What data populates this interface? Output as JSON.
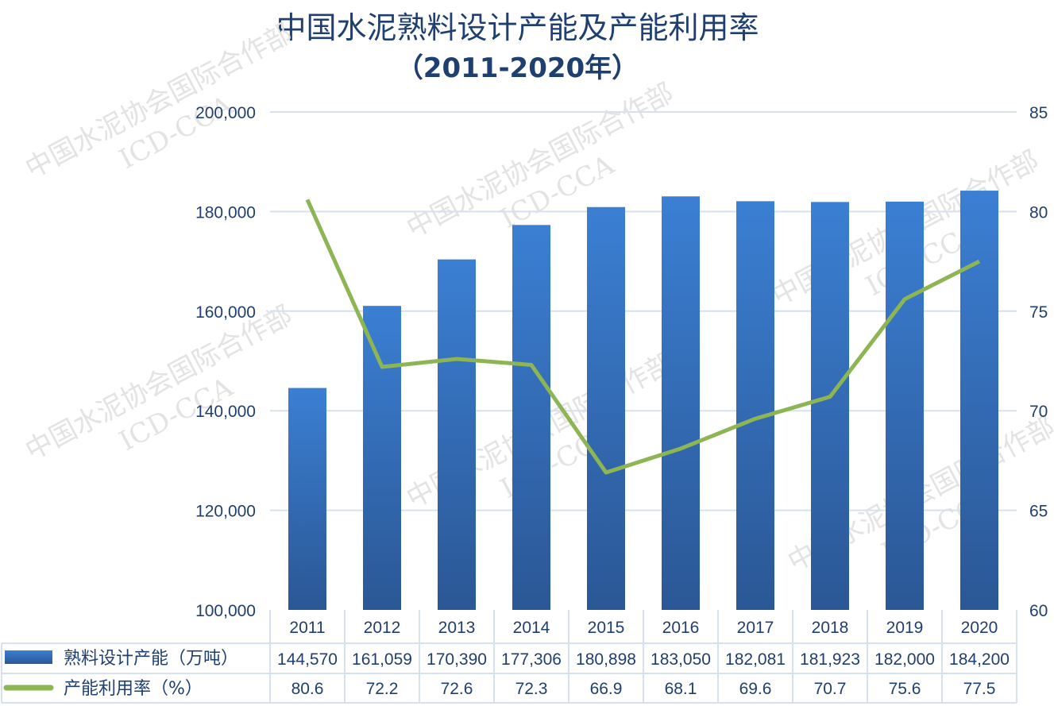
{
  "watermark": {
    "line1": "中国水泥协会国际合作部",
    "line2": "ICD-CCA"
  },
  "chart_data": {
    "type": "bar+line",
    "title": "中国水泥熟料设计产能及产能利用率",
    "subtitle": "（2011-2020年）",
    "categories": [
      "2011",
      "2012",
      "2013",
      "2014",
      "2015",
      "2016",
      "2017",
      "2018",
      "2019",
      "2020"
    ],
    "series": [
      {
        "name": "熟料设计产能（万吨）",
        "type": "bar",
        "axis": "left",
        "color": "#3777c4",
        "values": [
          144570,
          161059,
          170390,
          177306,
          180898,
          183050,
          182081,
          181923,
          182000,
          184200
        ],
        "labels": [
          "144,570",
          "161,059",
          "170,390",
          "177,306",
          "180,898",
          "183,050",
          "182,081",
          "181,923",
          "182,000",
          "184,200"
        ]
      },
      {
        "name": "产能利用率（%）",
        "type": "line",
        "axis": "right",
        "color": "#8db553",
        "values": [
          80.6,
          72.2,
          72.6,
          72.3,
          66.9,
          68.1,
          69.6,
          70.7,
          75.6,
          77.5
        ],
        "labels": [
          "80.6",
          "72.2",
          "72.6",
          "72.3",
          "66.9",
          "68.1",
          "69.6",
          "70.7",
          "75.6",
          "77.5"
        ]
      }
    ],
    "y_left": {
      "min": 100000,
      "max": 200000,
      "ticks": [
        "100,000",
        "120,000",
        "140,000",
        "160,000",
        "180,000",
        "200,000"
      ]
    },
    "y_right": {
      "min": 60,
      "max": 85,
      "ticks": [
        "60",
        "65",
        "70",
        "75",
        "80",
        "85"
      ]
    },
    "grid": true,
    "legend": "data-table-bottom"
  }
}
